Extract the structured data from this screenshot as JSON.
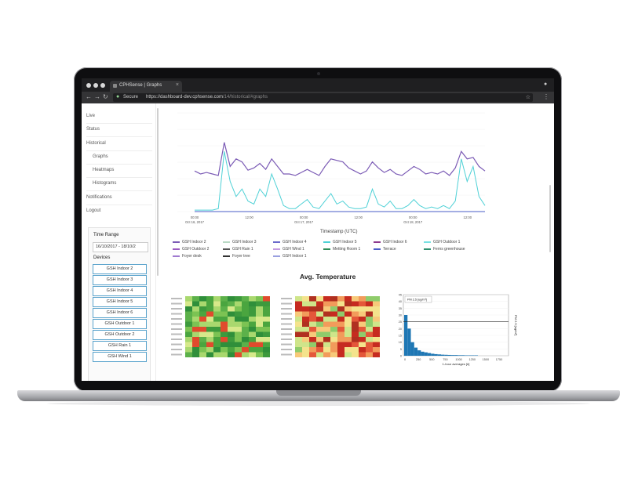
{
  "browser": {
    "tab_title": "CPHSense | Graphs",
    "close_glyph": "×",
    "secure_label": "Secure",
    "url_host": "https://dashboard-dev.cphsense.com",
    "url_path": "/14/historical/#graphs"
  },
  "sidebar": {
    "items": [
      {
        "label": "Live"
      },
      {
        "label": "Status"
      },
      {
        "label": "Historical"
      },
      {
        "label": "Graphs"
      },
      {
        "label": "Heatmaps"
      },
      {
        "label": "Histograms"
      },
      {
        "label": "Notifications"
      },
      {
        "label": "Logout"
      }
    ],
    "time_range_label": "Time Range",
    "time_range_value": "16/10/2017 - 18/10/2",
    "devices_label": "Devices",
    "devices": [
      "GSH Indoor 2",
      "GSH Indoor 3",
      "GSH Indoor 4",
      "GSH Indoor 5",
      "GSH Indoor 6",
      "GSH Outdoor 1",
      "GSH Outdoor 2",
      "GSH Rain 1",
      "GSH Wind 1"
    ]
  },
  "chart_data": {
    "type": "line",
    "xlabel": "Timestamp (UTC)",
    "x_ticks": [
      "00:00\nOct 16, 2017",
      "12:00",
      "00:00\nOct 17, 2017",
      "12:00",
      "00:00\nOct 18, 2017",
      "12:00"
    ],
    "series": [
      {
        "name": "GSH Indoor 2",
        "color": "#7b5bb5"
      },
      {
        "name": "GSH Indoor 3",
        "color": "#b9d9c5"
      },
      {
        "name": "GSH Indoor 4",
        "color": "#6a6acb"
      },
      {
        "name": "GSH Indoor 5",
        "color": "#4fd1d6"
      },
      {
        "name": "GSH Indoor 6",
        "color": "#8e3a8e"
      },
      {
        "name": "GSH Outdoor 1",
        "color": "#79e0e3"
      },
      {
        "name": "GSH Outdoor 2",
        "color": "#9b5bc0"
      },
      {
        "name": "GSH Rain 1",
        "color": "#555555"
      },
      {
        "name": "GSH Wind 1",
        "color": "#c49be0"
      },
      {
        "name": "Metting Room 1",
        "color": "#2e8b57"
      },
      {
        "name": "Terrace",
        "color": "#4a5cc7"
      },
      {
        "name": "Ferns greenhouse",
        "color": "#2f8f6f"
      },
      {
        "name": "Foyer desk",
        "color": "#a07ad0"
      },
      {
        "name": "Foyer tree",
        "color": "#333333"
      },
      {
        "name": "GSH Indoor 1",
        "color": "#9aa0e0"
      }
    ],
    "main_series_values": [
      54,
      50,
      52,
      50,
      48,
      92,
      60,
      70,
      66,
      55,
      58,
      64,
      56,
      70,
      60,
      50,
      50,
      48,
      52,
      56,
      52,
      48,
      60,
      70,
      68,
      66,
      58,
      54,
      50,
      54,
      66,
      58,
      52,
      56,
      50,
      48,
      54,
      60,
      56,
      50,
      52,
      50,
      54,
      48,
      58,
      80,
      70,
      72,
      60,
      54
    ],
    "secondary_series_values": [
      2,
      2,
      2,
      2,
      4,
      80,
      40,
      20,
      30,
      14,
      10,
      30,
      20,
      50,
      30,
      8,
      4,
      4,
      10,
      16,
      6,
      4,
      14,
      24,
      10,
      14,
      6,
      4,
      4,
      6,
      30,
      10,
      6,
      14,
      4,
      4,
      8,
      16,
      8,
      4,
      6,
      4,
      8,
      4,
      14,
      70,
      40,
      60,
      20,
      8
    ]
  },
  "section_title": "Avg. Temperature",
  "hist": {
    "legend": "PM 2.5 [ug/m³]",
    "xlabel": "1-hour averages [#]",
    "ylabel": "PM 2.5 [ug/m³]",
    "x_ticks": [
      "0",
      "250",
      "500",
      "750",
      "1000",
      "1250",
      "1500",
      "1750"
    ],
    "y_ticks": [
      "0",
      "5",
      "10",
      "15",
      "20",
      "25",
      "30",
      "35",
      "40",
      "45"
    ]
  }
}
